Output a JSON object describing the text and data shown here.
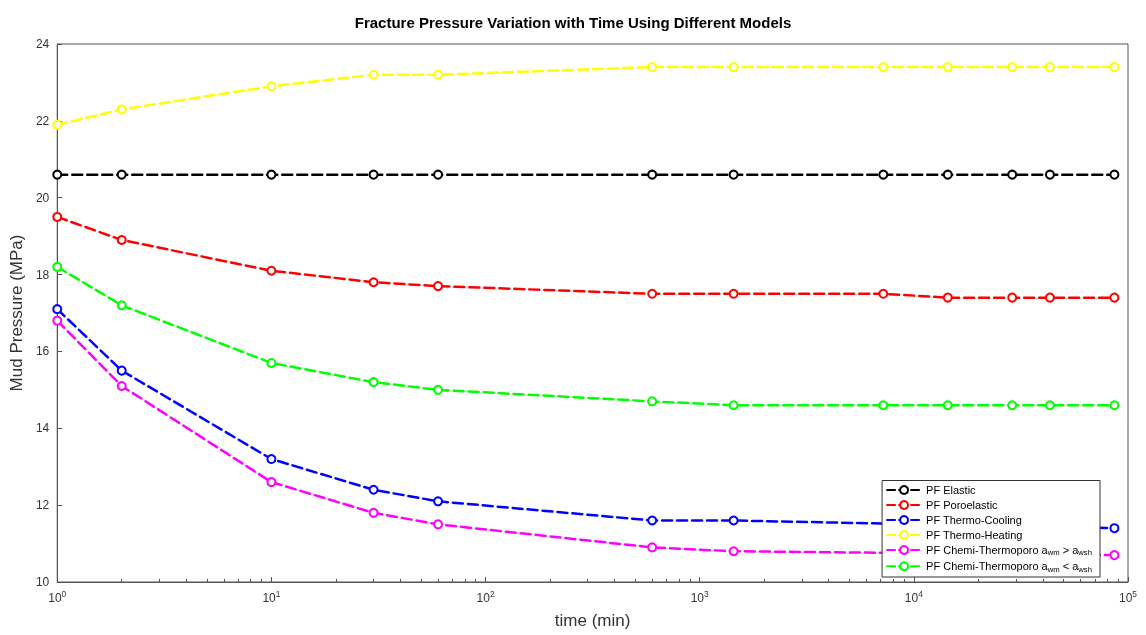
{
  "chart_data": {
    "type": "line",
    "title": "Fracture Pressure Variation with Time Using Different Models",
    "xlabel": "time (min)",
    "ylabel": "Mud Pressure (MPa)",
    "x": [
      1,
      2,
      10,
      30,
      60,
      600,
      1440,
      7200,
      14400,
      28800,
      43200,
      86400
    ],
    "log": "x",
    "xlim": [
      1,
      100000
    ],
    "xticks": [
      {
        "value": 1,
        "label": "10$^{0}$"
      },
      {
        "value": 10,
        "label": "10$^{1}$"
      },
      {
        "value": 100,
        "label": "10$^{2}$"
      },
      {
        "value": 1000,
        "label": "10$^{3}$"
      },
      {
        "value": 10000,
        "label": "10$^{4}$"
      },
      {
        "value": 100000,
        "label": "10$^{5}$"
      }
    ],
    "ylim": [
      10,
      24
    ],
    "yticks": [
      10,
      12,
      14,
      16,
      18,
      20,
      22,
      24
    ],
    "grid": false,
    "legend": "bottom right",
    "marker": "circle",
    "line_style": "dashed",
    "series": [
      {
        "name": "PF Elastic",
        "color": "#000000",
        "values": [
          20.6,
          20.6,
          20.6,
          20.6,
          20.6,
          20.6,
          20.6,
          20.6,
          20.6,
          20.6,
          20.6,
          20.6
        ]
      },
      {
        "name": "PF Poroelastic",
        "color": "#ff0000",
        "values": [
          19.5,
          18.9,
          18.1,
          17.8,
          17.7,
          17.5,
          17.5,
          17.5,
          17.4,
          17.4,
          17.4,
          17.4
        ]
      },
      {
        "name": "PF Thermo-Cooling",
        "color": "#0000ff",
        "values": [
          17.1,
          15.5,
          13.2,
          12.4,
          12.1,
          11.6,
          11.6,
          null,
          null,
          null,
          null,
          11.4
        ]
      },
      {
        "name": "PF Thermo-Heating",
        "color": "#ffff00",
        "values": [
          21.9,
          22.3,
          22.9,
          23.2,
          23.2,
          23.4,
          23.4,
          23.4,
          23.4,
          23.4,
          23.4,
          23.4
        ]
      },
      {
        "name": "PF Chemi-Thermoporo a$_{wm}$ > a$_{wsh}$",
        "color": "#ff00ff",
        "values": [
          16.8,
          15.1,
          12.6,
          11.8,
          11.5,
          10.9,
          10.8,
          null,
          null,
          null,
          null,
          10.7
        ]
      },
      {
        "name": "PF Chemi-Thermoporo a$_{wm}$ < a$_{wsh}$",
        "color": "#00ff00",
        "values": [
          18.2,
          17.2,
          15.7,
          15.2,
          15.0,
          14.7,
          14.6,
          14.6,
          14.6,
          14.6,
          14.6,
          14.6
        ]
      }
    ]
  }
}
